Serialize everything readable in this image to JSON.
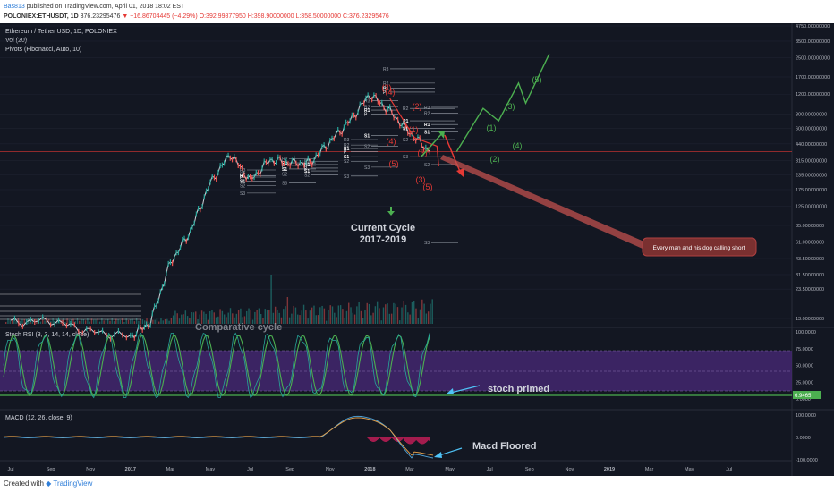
{
  "header": {
    "author": "Bas813",
    "published_text": "published on TradingView.com, April 01, 2018 18:02 EST",
    "symbol": "POLONIEX:ETHUSDT, 1D",
    "price": "376.23295476",
    "change": "▼ −16.86704445 (−4.29%)",
    "ohlc": "O:392.99877950 H:398.90000000 L:358.50000000 C:376.23295476"
  },
  "legend": {
    "title": "Ethereum / Tether USD, 1D, POLONIEX",
    "vol": "Vol (20)",
    "pivots": "Pivots (Fibonacci, Auto, 10)"
  },
  "colors": {
    "background": "#131722",
    "stoch_band": "#4a2a7a",
    "green": "#4caf50",
    "red": "#e53935",
    "k_line": "#26a69a",
    "annotation_arrow": "#4fc3f7"
  },
  "annotations": {
    "current_cycle_line1": "Current Cycle",
    "current_cycle_line2": "2017-2019",
    "comparative_cycle": "Comparative cycle",
    "callout": "Every man and his dog calling short",
    "stoch_note": "stoch primed",
    "macd_note": "Macd Floored"
  },
  "elliott": {
    "bullish": [
      "(1)",
      "(2)",
      "(3)",
      "(4)",
      "(5)"
    ],
    "bearish": [
      "(1)",
      "(2)",
      "(3)",
      "(4)",
      "(5)"
    ]
  },
  "pivot_labels": [
    "R3",
    "R2",
    "R1",
    "P",
    "S1",
    "S2",
    "S3"
  ],
  "stoch_panel": {
    "title": "Stoch RSI (3, 3, 14, 14, close)",
    "yticks": [
      "100.0000",
      "75.0000",
      "50.0000",
      "25.0000",
      "0.0000"
    ],
    "current_value": "6.9465"
  },
  "macd_panel": {
    "title": "MACD (12, 26, close, 9)",
    "yticks": [
      "100.0000",
      "0.0000",
      "-100.0000"
    ]
  },
  "chart_data": {
    "type": "line",
    "title": "Ethereum / Tether USD, 1D, POLONIEX",
    "y_scale": "log",
    "price_axis": {
      "ticks": [
        "4750.00000000",
        "3500.00000000",
        "2500.00000000",
        "1700.00000000",
        "1200.00000000",
        "800.00000000",
        "600.00000000",
        "440.00000000",
        "315.00000000",
        "235.00000000",
        "175.00000000",
        "125.00000000",
        "85.00000000",
        "61.00000000",
        "43.50000000",
        "31.50000000",
        "23.50000000",
        "13.00000000"
      ],
      "values": [
        4750,
        3500,
        2500,
        1700,
        1200,
        800,
        600,
        440,
        315,
        235,
        175,
        125,
        85,
        61,
        43.5,
        31.5,
        23.5,
        13
      ],
      "current_price": 376.23
    },
    "x_axis": {
      "ticks": [
        "Jul",
        "Sep",
        "Nov",
        "2017",
        "Mar",
        "May",
        "Jul",
        "Sep",
        "Nov",
        "2018",
        "Mar",
        "May",
        "Jul",
        "Sep",
        "Nov",
        "2019",
        "Mar",
        "May",
        "Jul"
      ]
    },
    "series": [
      {
        "x": [
          "2016-07",
          "2016-09",
          "2016-11",
          "2017-01",
          "2017-02",
          "2017-03",
          "2017-04",
          "2017-05",
          "2017-06",
          "2017-07",
          "2017-08",
          "2017-09",
          "2017-10",
          "2017-11",
          "2017-12",
          "2018-01",
          "2018-02",
          "2018-03",
          "2018-04"
        ],
        "y": [
          12,
          12.5,
          10,
          9,
          12,
          40,
          75,
          200,
          360,
          210,
          320,
          300,
          300,
          460,
          700,
          1200,
          850,
          550,
          376
        ]
      }
    ],
    "projection_bull": {
      "x": [
        "2018-04",
        "2018-06",
        "2018-07",
        "2018-08",
        "2018-08",
        "2018-09"
      ],
      "y": [
        376,
        900,
        700,
        1500,
        1000,
        2700
      ]
    },
    "projection_bear": {
      "x": [
        "2018-02",
        "2018-03",
        "2018-04",
        "2018-04"
      ],
      "y": [
        1100,
        500,
        420,
        280
      ]
    }
  }
}
